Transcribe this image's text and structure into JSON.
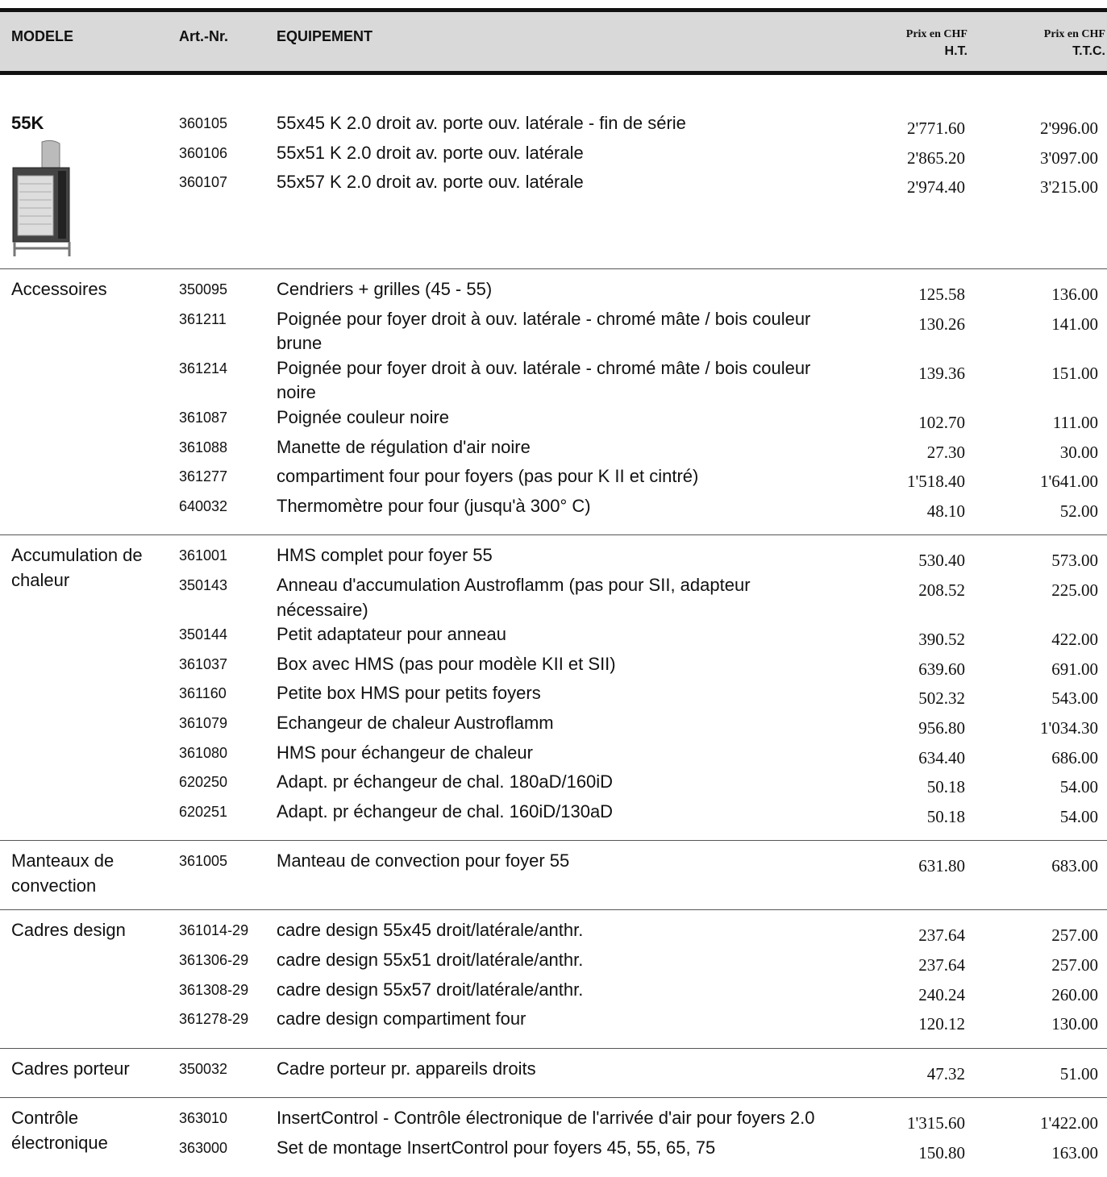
{
  "header": {
    "model": "MODELE",
    "art_nr": "Art.-Nr.",
    "equipment": "EQUIPEMENT",
    "price_ht": {
      "label": "Prix en CHF",
      "unit": "H.T."
    },
    "price_ttc": {
      "label": "Prix en CHF",
      "unit": "T.T.C."
    }
  },
  "sections": [
    {
      "title": "55K",
      "rows": [
        {
          "art": "360105",
          "desc": "55x45 K 2.0 droit av. porte ouv. latérale - fin de série",
          "ht": "2'771.60",
          "ttc": "2'996.00"
        },
        {
          "art": "360106",
          "desc": "55x51 K 2.0 droit av. porte ouv. latérale",
          "ht": "2'865.20",
          "ttc": "3'097.00"
        },
        {
          "art": "360107",
          "desc": "55x57 K 2.0 droit av. porte ouv. latérale",
          "ht": "2'974.40",
          "ttc": "3'215.00"
        }
      ]
    },
    {
      "title": "Accessoires",
      "rows": [
        {
          "art": "350095",
          "desc": "Cendriers + grilles (45 - 55)",
          "ht": "125.58",
          "ttc": "136.00"
        },
        {
          "art": "361211",
          "desc": "Poignée pour foyer droit à ouv. latérale - chromé mâte / bois couleur brune",
          "ht": "130.26",
          "ttc": "141.00"
        },
        {
          "art": "361214",
          "desc": "Poignée pour foyer droit à ouv. latérale - chromé mâte / bois couleur noire",
          "ht": "139.36",
          "ttc": "151.00"
        },
        {
          "art": "361087",
          "desc": "Poignée couleur noire",
          "ht": "102.70",
          "ttc": "111.00"
        },
        {
          "art": "361088",
          "desc": "Manette de régulation d'air noire",
          "ht": "27.30",
          "ttc": "30.00"
        },
        {
          "art": "361277",
          "desc": "compartiment four pour foyers (pas pour K II et cintré)",
          "ht": "1'518.40",
          "ttc": "1'641.00"
        },
        {
          "art": "640032",
          "desc": "Thermomètre pour four (jusqu'à 300° C)",
          "ht": "48.10",
          "ttc": "52.00"
        }
      ]
    },
    {
      "title": "Accumulation de chaleur",
      "rows": [
        {
          "art": "361001",
          "desc": "HMS complet pour foyer 55",
          "ht": "530.40",
          "ttc": "573.00"
        },
        {
          "art": "350143",
          "desc": "Anneau d'accumulation Austroflamm (pas pour SII, adapteur nécessaire)",
          "ht": "208.52",
          "ttc": "225.00"
        },
        {
          "art": "350144",
          "desc": "Petit adaptateur pour anneau",
          "ht": "390.52",
          "ttc": "422.00"
        },
        {
          "art": "361037",
          "desc": "Box  avec HMS (pas pour modèle KII et SII)",
          "ht": "639.60",
          "ttc": "691.00"
        },
        {
          "art": "361160",
          "desc": "Petite box HMS pour petits foyers",
          "ht": "502.32",
          "ttc": "543.00"
        },
        {
          "art": "361079",
          "desc": "Echangeur de chaleur Austroflamm",
          "ht": "956.80",
          "ttc": "1'034.30"
        },
        {
          "art": "361080",
          "desc": "HMS pour échangeur de chaleur",
          "ht": "634.40",
          "ttc": "686.00"
        },
        {
          "art": "620250",
          "desc": "Adapt. pr échangeur de chal. 180aD/160iD",
          "ht": "50.18",
          "ttc": "54.00"
        },
        {
          "art": "620251",
          "desc": "Adapt. pr échangeur de chal. 160iD/130aD",
          "ht": "50.18",
          "ttc": "54.00"
        }
      ]
    },
    {
      "title": "Manteaux de convection",
      "rows": [
        {
          "art": "361005",
          "desc": "Manteau de convection pour foyer 55",
          "ht": "631.80",
          "ttc": "683.00"
        }
      ]
    },
    {
      "title": "Cadres design",
      "rows": [
        {
          "art": "361014-29",
          "desc": "cadre design 55x45 droit/latérale/anthr.",
          "ht": "237.64",
          "ttc": "257.00"
        },
        {
          "art": "361306-29",
          "desc": "cadre design 55x51 droit/latérale/anthr.",
          "ht": "237.64",
          "ttc": "257.00"
        },
        {
          "art": "361308-29",
          "desc": "cadre design 55x57 droit/latérale/anthr.",
          "ht": "240.24",
          "ttc": "260.00"
        },
        {
          "art": "361278-29",
          "desc": "cadre design compartiment four",
          "ht": "120.12",
          "ttc": "130.00"
        }
      ]
    },
    {
      "title": "Cadres porteur",
      "rows": [
        {
          "art": "350032",
          "desc": "Cadre porteur pr. appareils droits",
          "ht": "47.32",
          "ttc": "51.00"
        }
      ]
    },
    {
      "title": "Contrôle électronique",
      "rows": [
        {
          "art": "363010",
          "desc": "InsertControl - Contrôle électronique de l'arrivée d'air pour foyers 2.0",
          "ht": "1'315.60",
          "ttc": "1'422.00"
        },
        {
          "art": "363000",
          "desc": "Set de montage InsertControl pour foyers 45, 55, 65, 75",
          "ht": "150.80",
          "ttc": "163.00"
        }
      ]
    }
  ]
}
